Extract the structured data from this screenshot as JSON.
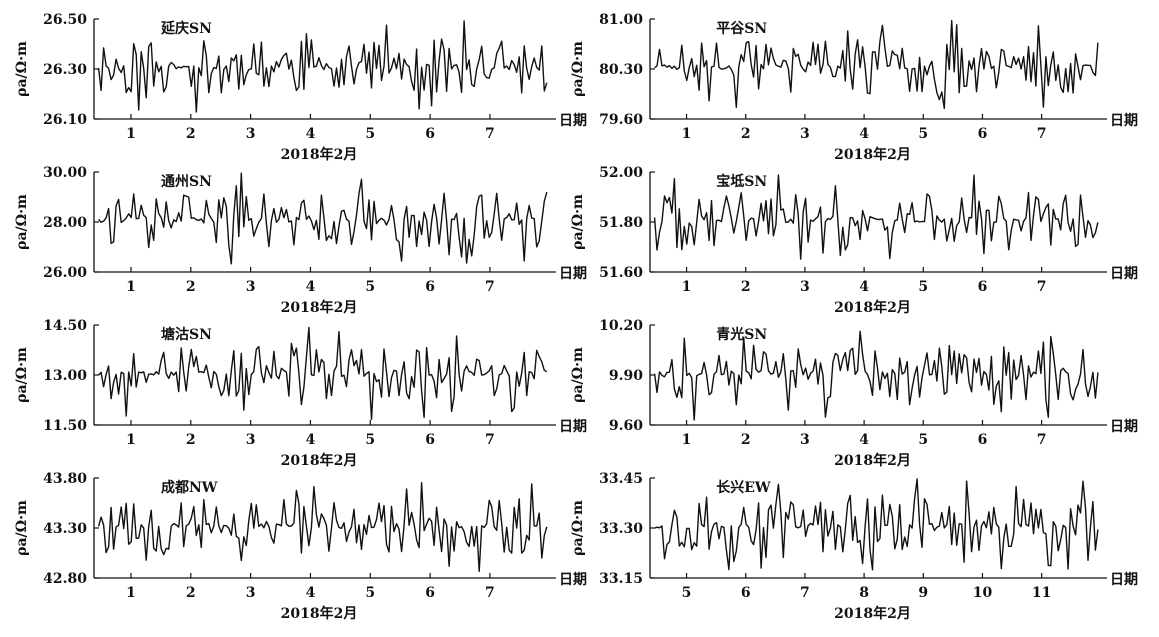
{
  "figure": {
    "date_label": "2018年2月",
    "axis_suffix": "日期",
    "ylabel": "ρa/Ω·m"
  },
  "chart_data": [
    {
      "type": "line",
      "title": "延庆SN",
      "ylabel": "ρa/Ω·m",
      "xlabel": "2018年2月",
      "x_ticks": [
        "1",
        "2",
        "3",
        "4",
        "5",
        "6",
        "7"
      ],
      "y_ticks": [
        "26.10",
        "26.30",
        "26.50"
      ],
      "ylim": [
        26.1,
        26.5
      ],
      "seed": 11
    },
    {
      "type": "line",
      "title": "平谷SN",
      "ylabel": "ρa/Ω·m",
      "xlabel": "2018年2月",
      "x_ticks": [
        "1",
        "2",
        "3",
        "4",
        "5",
        "6",
        "7"
      ],
      "y_ticks": [
        "79.60",
        "80.30",
        "81.00"
      ],
      "ylim": [
        79.6,
        81.0
      ],
      "seed": 23
    },
    {
      "type": "line",
      "title": "通州SN",
      "ylabel": "ρa/Ω·m",
      "xlabel": "2018年2月",
      "x_ticks": [
        "1",
        "2",
        "3",
        "4",
        "5",
        "6",
        "7"
      ],
      "y_ticks": [
        "26.00",
        "28.00",
        "30.00"
      ],
      "ylim": [
        26.0,
        30.0
      ],
      "seed": 37
    },
    {
      "type": "line",
      "title": "宝坻SN",
      "ylabel": "ρa/Ω·m",
      "xlabel": "2018年2月",
      "x_ticks": [
        "1",
        "2",
        "3",
        "4",
        "5",
        "6",
        "7"
      ],
      "y_ticks": [
        "51.60",
        "51.80",
        "52.00"
      ],
      "ylim": [
        51.6,
        52.0
      ],
      "seed": 41
    },
    {
      "type": "line",
      "title": "塘沽SN",
      "ylabel": "ρa/Ω·m",
      "xlabel": "2018年2月",
      "x_ticks": [
        "1",
        "2",
        "3",
        "4",
        "5",
        "6",
        "7"
      ],
      "y_ticks": [
        "11.50",
        "13.00",
        "14.50"
      ],
      "ylim": [
        11.5,
        14.5
      ],
      "seed": 53
    },
    {
      "type": "line",
      "title": "青光SN",
      "ylabel": "ρa/Ω·m",
      "xlabel": "2018年2月",
      "x_ticks": [
        "1",
        "2",
        "3",
        "4",
        "5",
        "6",
        "7"
      ],
      "y_ticks": [
        "9.60",
        "9.90",
        "10.20"
      ],
      "ylim": [
        9.6,
        10.2
      ],
      "seed": 67
    },
    {
      "type": "line",
      "title": "成都NW",
      "ylabel": "ρa/Ω·m",
      "xlabel": "2018年2月",
      "x_ticks": [
        "1",
        "2",
        "3",
        "4",
        "5",
        "6",
        "7"
      ],
      "y_ticks": [
        "42.80",
        "43.30",
        "43.80"
      ],
      "ylim": [
        42.8,
        43.8
      ],
      "seed": 79
    },
    {
      "type": "line",
      "title": "长兴EW",
      "ylabel": "ρa/Ω·m",
      "xlabel": "2018年2月",
      "x_ticks": [
        "5",
        "6",
        "7",
        "8",
        "9",
        "10",
        "11"
      ],
      "y_ticks": [
        "33.15",
        "33.30",
        "33.45"
      ],
      "ylim": [
        33.15,
        33.45
      ],
      "seed": 97
    }
  ]
}
